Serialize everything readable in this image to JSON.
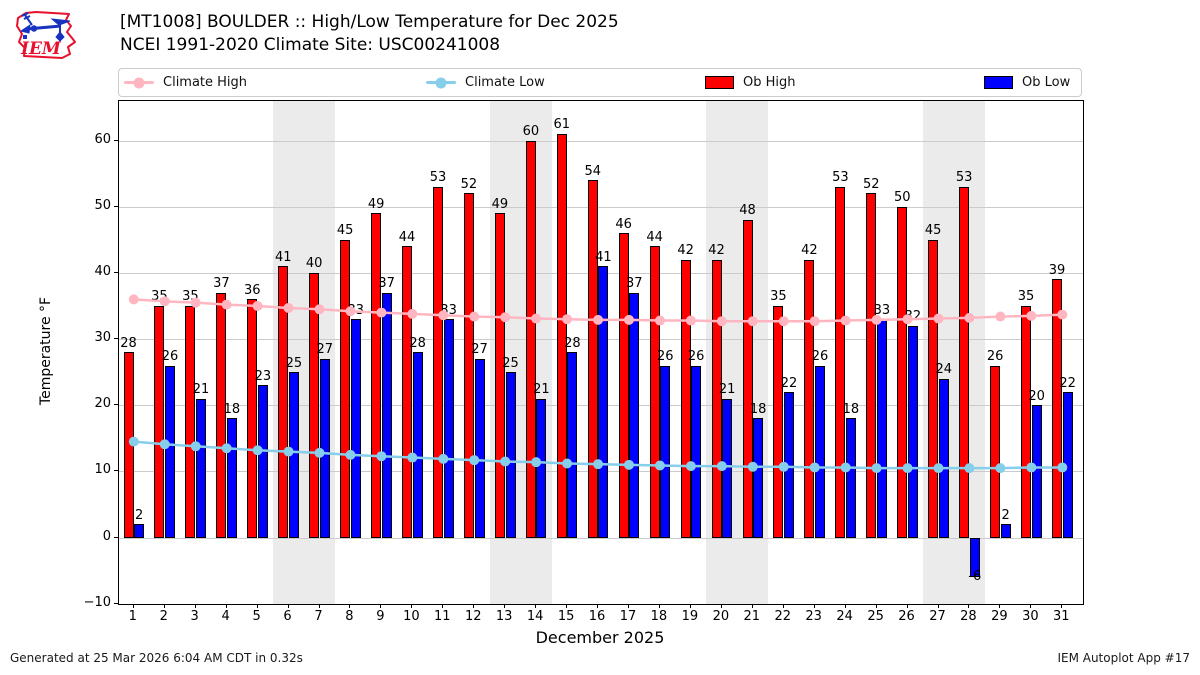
{
  "header": {
    "title_line1": "[MT1008] BOULDER :: High/Low Temperature for Dec 2025",
    "title_line2": "NCEI 1991-2020 Climate Site: USC00241008",
    "logo_text": "IEM"
  },
  "legend": {
    "items": [
      {
        "label": "Climate High",
        "type": "line",
        "color": "#ffb6c1"
      },
      {
        "label": "Climate Low",
        "type": "line",
        "color": "#87ceeb"
      },
      {
        "label": "Ob High",
        "type": "rect",
        "color": "#ff0000"
      },
      {
        "label": "Ob Low",
        "type": "rect",
        "color": "#0000ff"
      }
    ]
  },
  "chart_data": {
    "type": "bar",
    "title": "[MT1008] BOULDER :: High/Low Temperature for Dec 2025",
    "subtitle": "NCEI 1991-2020 Climate Site: USC00241008",
    "xlabel": "December 2025",
    "ylabel": "Temperature °F",
    "ylim": [
      -10,
      66
    ],
    "yticks": [
      -10,
      0,
      10,
      20,
      30,
      40,
      50,
      60
    ],
    "grid": true,
    "legend_position": "top",
    "categories": [
      1,
      2,
      3,
      4,
      5,
      6,
      7,
      8,
      9,
      10,
      11,
      12,
      13,
      14,
      15,
      16,
      17,
      18,
      19,
      20,
      21,
      22,
      23,
      24,
      25,
      26,
      27,
      28,
      29,
      30,
      31
    ],
    "weekend_shading_days": [
      [
        6,
        7
      ],
      [
        13,
        14
      ],
      [
        20,
        21
      ],
      [
        27,
        28
      ]
    ],
    "series": [
      {
        "name": "Ob High",
        "type": "bar",
        "color": "#ff0000",
        "values": [
          28,
          35,
          35,
          37,
          36,
          41,
          40,
          45,
          49,
          44,
          53,
          52,
          49,
          60,
          61,
          54,
          46,
          44,
          42,
          42,
          48,
          35,
          42,
          53,
          52,
          50,
          45,
          53,
          26,
          35,
          39
        ]
      },
      {
        "name": "Ob Low",
        "type": "bar",
        "color": "#0000ff",
        "values": [
          2,
          26,
          21,
          18,
          23,
          25,
          27,
          33,
          37,
          28,
          33,
          27,
          25,
          21,
          28,
          41,
          37,
          26,
          26,
          21,
          18,
          22,
          26,
          18,
          33,
          32,
          24,
          -6,
          2,
          20,
          22
        ]
      },
      {
        "name": "Climate High",
        "type": "line",
        "color": "#ffb6c1",
        "values": [
          36.0,
          35.7,
          35.5,
          35.2,
          35.0,
          34.7,
          34.5,
          34.2,
          34.0,
          33.8,
          33.6,
          33.4,
          33.3,
          33.1,
          33.0,
          32.9,
          32.9,
          32.8,
          32.8,
          32.7,
          32.7,
          32.7,
          32.7,
          32.8,
          32.9,
          33.0,
          33.1,
          33.2,
          33.4,
          33.5,
          33.7
        ]
      },
      {
        "name": "Climate Low",
        "type": "line",
        "color": "#87ceeb",
        "values": [
          14.5,
          14.1,
          13.8,
          13.5,
          13.2,
          13.0,
          12.8,
          12.5,
          12.3,
          12.1,
          11.9,
          11.7,
          11.5,
          11.4,
          11.2,
          11.1,
          11.0,
          10.9,
          10.8,
          10.8,
          10.7,
          10.7,
          10.6,
          10.6,
          10.5,
          10.5,
          10.5,
          10.5,
          10.5,
          10.6,
          10.6
        ]
      }
    ]
  },
  "footer": {
    "left": "Generated at 25 Mar 2026 6:04 AM CDT in 0.32s",
    "right": "IEM Autoplot App #17"
  }
}
